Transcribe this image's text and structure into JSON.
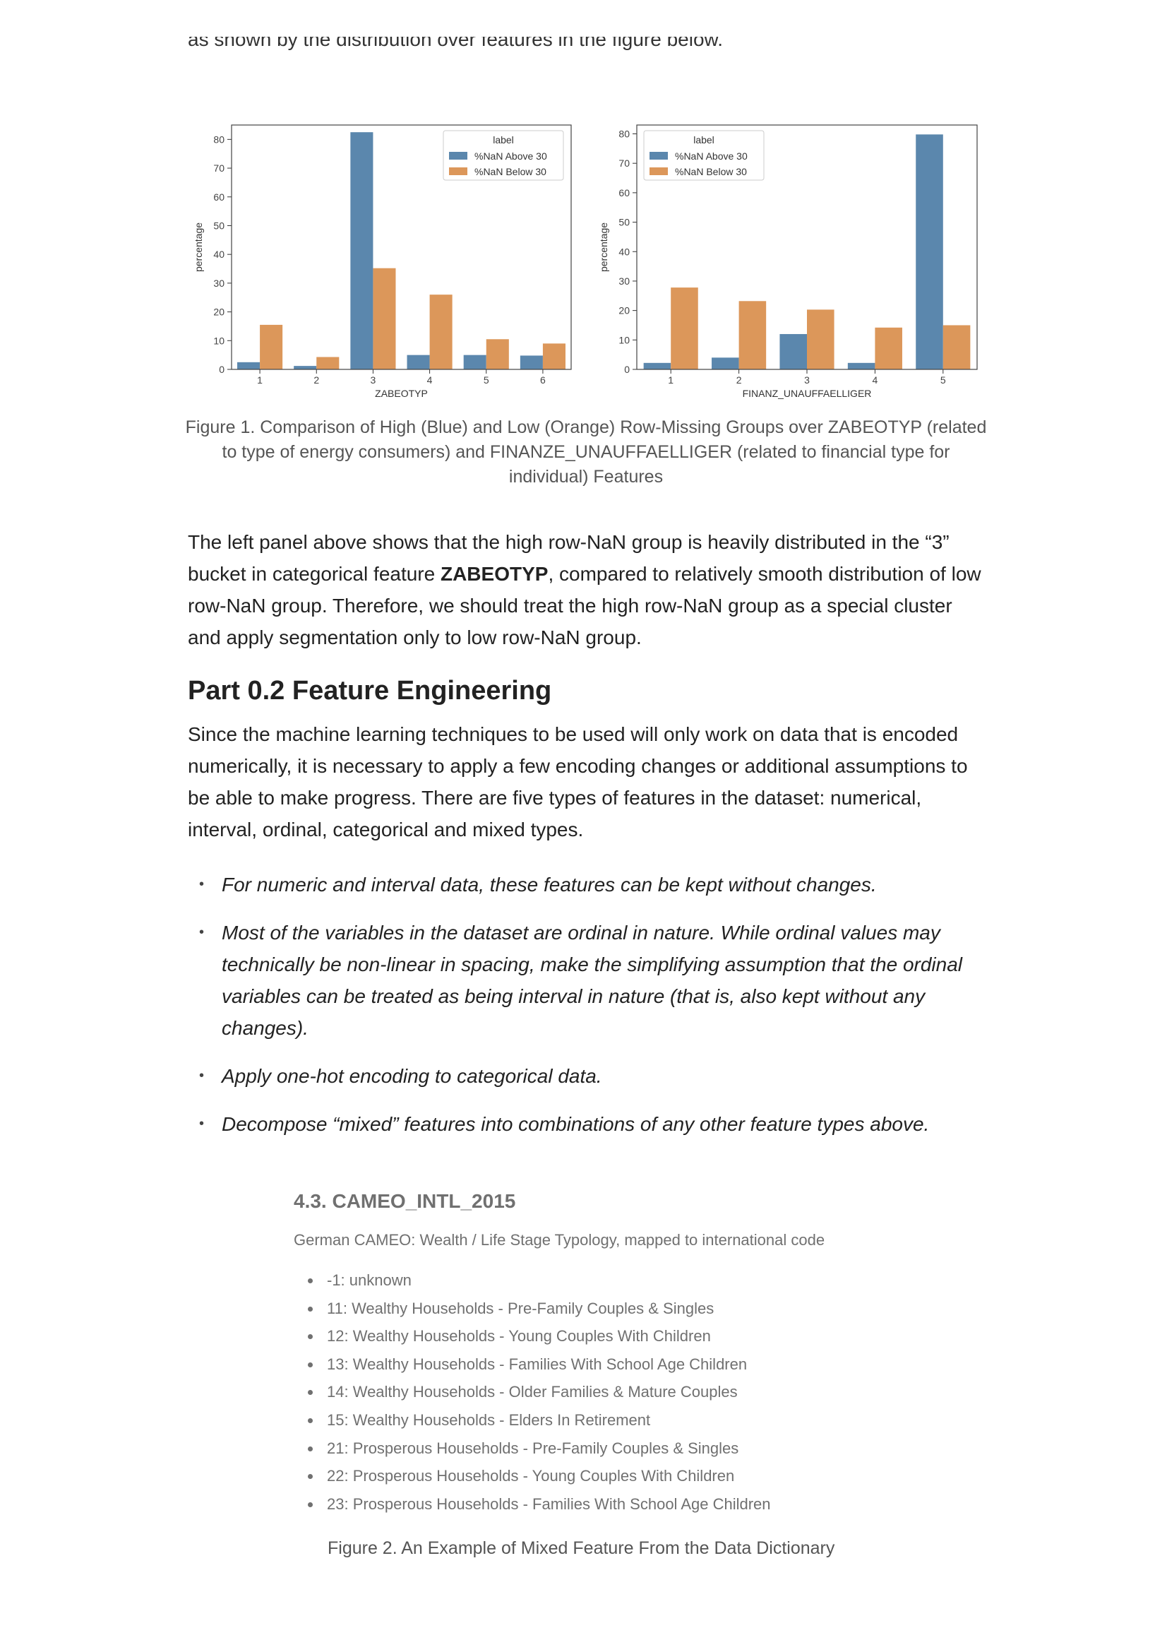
{
  "cut_text": "as shown by the distribution over features in the figure below.",
  "chart_data": [
    {
      "type": "bar",
      "xlabel": "ZABEOTYP",
      "ylabel": "percentage",
      "categories": [
        "1",
        "2",
        "3",
        "4",
        "5",
        "6"
      ],
      "ylim": [
        0,
        85
      ],
      "yticks": [
        0,
        10,
        20,
        30,
        40,
        50,
        60,
        70,
        80
      ],
      "legend_title": "label",
      "legend_position": "top-right",
      "series": [
        {
          "name": "%NaN Above 30",
          "color": "#5b87ad",
          "values": [
            2.5,
            1.2,
            82.5,
            5.0,
            5.0,
            4.8
          ]
        },
        {
          "name": "%NaN Below 30",
          "color": "#dc975a",
          "values": [
            15.5,
            4.3,
            35.2,
            26.0,
            10.5,
            9.0
          ]
        }
      ]
    },
    {
      "type": "bar",
      "xlabel": "FINANZ_UNAUFFAELLIGER",
      "ylabel": "percentage",
      "categories": [
        "1",
        "2",
        "3",
        "4",
        "5"
      ],
      "ylim": [
        0,
        83
      ],
      "yticks": [
        0,
        10,
        20,
        30,
        40,
        50,
        60,
        70,
        80
      ],
      "legend_title": "label",
      "legend_position": "top-left",
      "series": [
        {
          "name": "%NaN Above 30",
          "color": "#5b87ad",
          "values": [
            2.2,
            4.0,
            12.0,
            2.2,
            79.8
          ]
        },
        {
          "name": "%NaN Below 30",
          "color": "#dc975a",
          "values": [
            27.8,
            23.2,
            20.3,
            14.2,
            15.0
          ]
        }
      ]
    }
  ],
  "figure1_caption": "Figure 1. Comparison of High (Blue) and Low (Orange) Row-Missing Groups over ZABEOTYP (related to type of energy consumers) and FINANZE_UNAUFFAELLIGER (related to financial type for individual) Features",
  "para1": {
    "before": "The left panel above shows that the high row-NaN group is heavily distributed in the “3” bucket in categorical feature ",
    "bold": "ZABEOTYP",
    "after": ", compared to relatively smooth distribution of low row-NaN group. Therefore, we should treat the high row-NaN group as a special cluster and apply segmentation only to low row-NaN group."
  },
  "heading": "Part 0.2 Feature Engineering",
  "para2": "Since the machine learning techniques to be used will only work on data that is encoded numerically, it is necessary to apply a few encoding changes or additional assumptions to be able to make progress. There are five types of features in the dataset: numerical, interval, ordinal, categorical and mixed types.",
  "bullet_marker": "•",
  "bullets": [
    "For numeric and interval data, these features can be kept without changes.",
    "Most of the variables in the dataset are ordinal in nature. While ordinal values may technically be non-linear in spacing, make the simplifying assumption that the ordinal variables can be treated as being interval in nature (that is, also kept without any changes).",
    "Apply one-hot encoding to categorical data.",
    "Decompose “mixed” features into combinations of any other feature types above."
  ],
  "dictionary": {
    "title": "4.3. CAMEO_INTL_2015",
    "description": "German CAMEO: Wealth / Life Stage Typology, mapped to international code",
    "items": [
      "-1: unknown",
      "11: Wealthy Households - Pre-Family Couples & Singles",
      "12: Wealthy Households - Young Couples With Children",
      "13: Wealthy Households - Families With School Age Children",
      "14: Wealthy Households - Older Families & Mature Couples",
      "15: Wealthy Households - Elders In Retirement",
      "21: Prosperous Households - Pre-Family Couples & Singles",
      "22: Prosperous Households - Young Couples With Children",
      "23: Prosperous Households - Families With School Age Children"
    ]
  },
  "figure2_caption": "Figure 2. An Example of Mixed Feature From the Data Dictionary"
}
